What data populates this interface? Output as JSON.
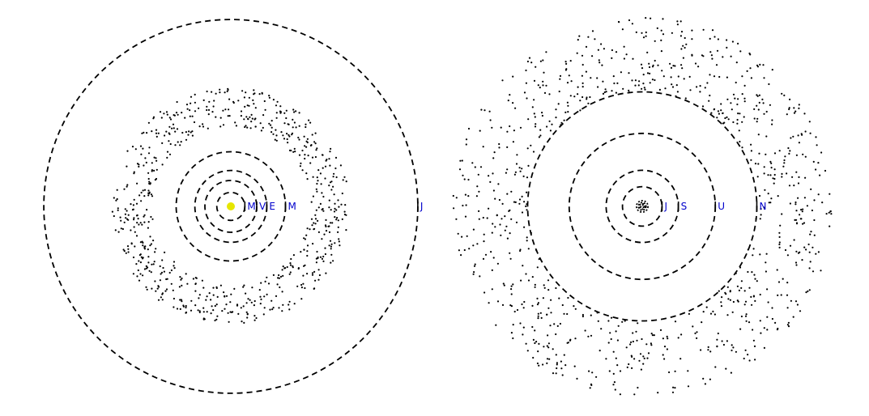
{
  "panels": [
    {
      "id": "inner",
      "sun": {
        "color": "#e6e600"
      },
      "orbits": [
        {
          "label": "M",
          "radius_au": 0.39
        },
        {
          "label": "V",
          "radius_au": 0.72
        },
        {
          "label": "E",
          "radius_au": 1.0
        },
        {
          "label": "M",
          "radius_au": 1.52
        },
        {
          "label": "J",
          "radius_au": 5.2
        }
      ],
      "asteroid_belt": {
        "inner_au": 2.2,
        "outer_au": 3.3,
        "count": 700,
        "style": "black dots"
      }
    },
    {
      "id": "outer",
      "orbits": [
        {
          "label": "",
          "radius_au": 0.39
        },
        {
          "label": "",
          "radius_au": 0.72
        },
        {
          "label": "",
          "radius_au": 1.0
        },
        {
          "label": "",
          "radius_au": 1.52
        },
        {
          "label": "J",
          "radius_au": 5.2
        },
        {
          "label": "S",
          "radius_au": 9.5
        },
        {
          "label": "U",
          "radius_au": 19.2
        },
        {
          "label": "N",
          "radius_au": 30.1
        }
      ],
      "kuiper_belt": {
        "inner_au": 30,
        "outer_au": 50,
        "count": 900,
        "style": "black dots"
      }
    }
  ],
  "colors": {
    "orbit": "#000000",
    "label": "#0000cc",
    "dots": "#000000"
  }
}
